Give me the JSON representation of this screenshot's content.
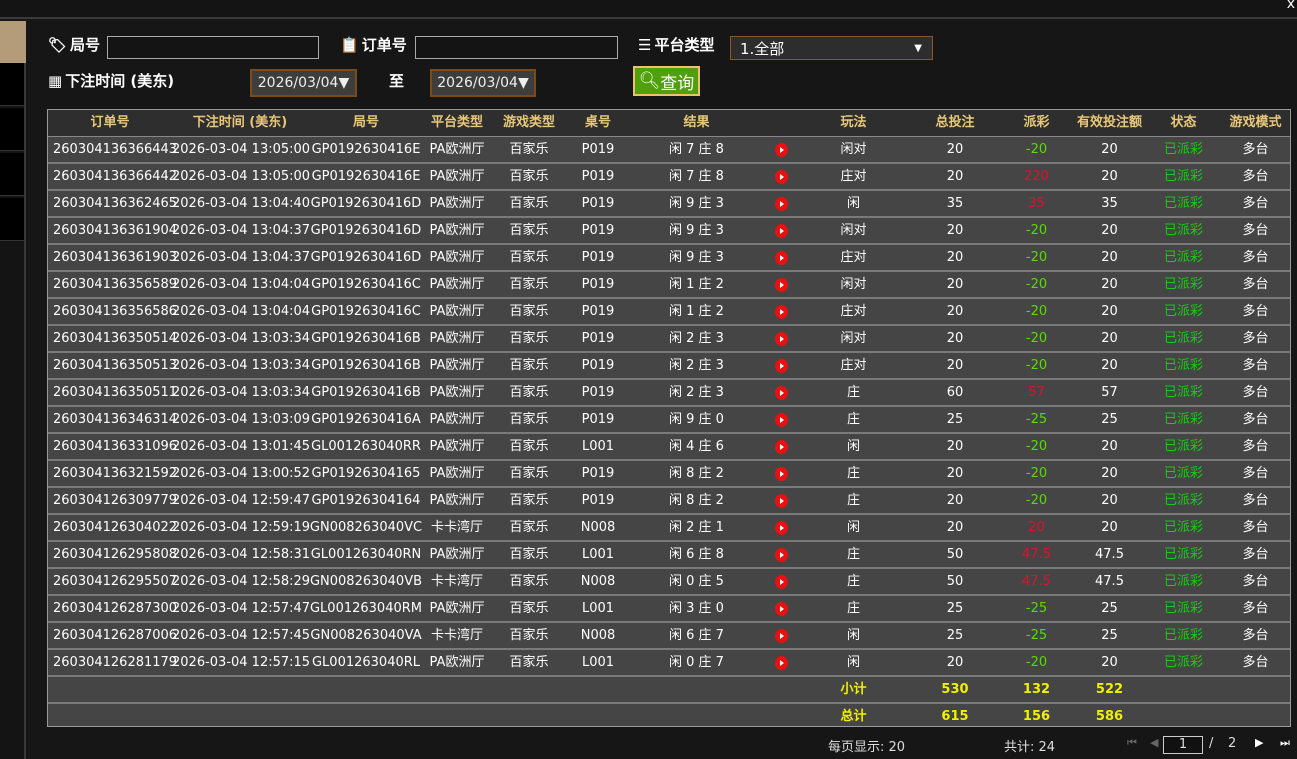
{
  "window": {
    "close_label": "x"
  },
  "filters": {
    "round_label": "局号",
    "round_value": "",
    "order_label": "订单号",
    "order_value": "",
    "platform_label": "平台类型",
    "platform_value": "1.全部",
    "time_label": "下注时间 (美东)",
    "date_from": "2026/03/04▼",
    "to_label": "至",
    "date_to": "2026/03/04▼",
    "query_label": "查询"
  },
  "columns": [
    "订单号",
    "下注时间 (美东)",
    "局号",
    "平台类型",
    "游戏类型",
    "桌号",
    "结果",
    "",
    "玩法",
    "总投注",
    "派彩",
    "有效投注额",
    "状态",
    "游戏模式"
  ],
  "colors": {
    "win": "#e01030",
    "loss": "#55dd00",
    "status": "#10d010",
    "header": "#e8c878",
    "sum": "#f0f000"
  },
  "rows": [
    [
      "260304136366443",
      "2026-03-04 13:05:00",
      "GP0192630416E",
      "PA欧洲厅",
      "百家乐",
      "P019",
      "闲 7 庄 8",
      "闲对",
      "20",
      "-20",
      "20",
      "已派彩",
      "多台"
    ],
    [
      "260304136366442",
      "2026-03-04 13:05:00",
      "GP0192630416E",
      "PA欧洲厅",
      "百家乐",
      "P019",
      "闲 7 庄 8",
      "庄对",
      "20",
      "220",
      "20",
      "已派彩",
      "多台"
    ],
    [
      "260304136362465",
      "2026-03-04 13:04:40",
      "GP0192630416D",
      "PA欧洲厅",
      "百家乐",
      "P019",
      "闲 9 庄 3",
      "闲",
      "35",
      "35",
      "35",
      "已派彩",
      "多台"
    ],
    [
      "260304136361904",
      "2026-03-04 13:04:37",
      "GP0192630416D",
      "PA欧洲厅",
      "百家乐",
      "P019",
      "闲 9 庄 3",
      "闲对",
      "20",
      "-20",
      "20",
      "已派彩",
      "多台"
    ],
    [
      "260304136361903",
      "2026-03-04 13:04:37",
      "GP0192630416D",
      "PA欧洲厅",
      "百家乐",
      "P019",
      "闲 9 庄 3",
      "庄对",
      "20",
      "-20",
      "20",
      "已派彩",
      "多台"
    ],
    [
      "260304136356589",
      "2026-03-04 13:04:04",
      "GP0192630416C",
      "PA欧洲厅",
      "百家乐",
      "P019",
      "闲 1 庄 2",
      "闲对",
      "20",
      "-20",
      "20",
      "已派彩",
      "多台"
    ],
    [
      "260304136356586",
      "2026-03-04 13:04:04",
      "GP0192630416C",
      "PA欧洲厅",
      "百家乐",
      "P019",
      "闲 1 庄 2",
      "庄对",
      "20",
      "-20",
      "20",
      "已派彩",
      "多台"
    ],
    [
      "260304136350514",
      "2026-03-04 13:03:34",
      "GP0192630416B",
      "PA欧洲厅",
      "百家乐",
      "P019",
      "闲 2 庄 3",
      "闲对",
      "20",
      "-20",
      "20",
      "已派彩",
      "多台"
    ],
    [
      "260304136350513",
      "2026-03-04 13:03:34",
      "GP0192630416B",
      "PA欧洲厅",
      "百家乐",
      "P019",
      "闲 2 庄 3",
      "庄对",
      "20",
      "-20",
      "20",
      "已派彩",
      "多台"
    ],
    [
      "260304136350511",
      "2026-03-04 13:03:34",
      "GP0192630416B",
      "PA欧洲厅",
      "百家乐",
      "P019",
      "闲 2 庄 3",
      "庄",
      "60",
      "57",
      "57",
      "已派彩",
      "多台"
    ],
    [
      "260304136346314",
      "2026-03-04 13:03:09",
      "GP0192630416A",
      "PA欧洲厅",
      "百家乐",
      "P019",
      "闲 9 庄 0",
      "庄",
      "25",
      "-25",
      "25",
      "已派彩",
      "多台"
    ],
    [
      "260304136331096",
      "2026-03-04 13:01:45",
      "GL001263040RR",
      "PA欧洲厅",
      "百家乐",
      "L001",
      "闲 4 庄 6",
      "闲",
      "20",
      "-20",
      "20",
      "已派彩",
      "多台"
    ],
    [
      "260304136321592",
      "2026-03-04 13:00:52",
      "GP01926304165",
      "PA欧洲厅",
      "百家乐",
      "P019",
      "闲 8 庄 2",
      "庄",
      "20",
      "-20",
      "20",
      "已派彩",
      "多台"
    ],
    [
      "260304126309779",
      "2026-03-04 12:59:47",
      "GP01926304164",
      "PA欧洲厅",
      "百家乐",
      "P019",
      "闲 8 庄 2",
      "庄",
      "20",
      "-20",
      "20",
      "已派彩",
      "多台"
    ],
    [
      "260304126304022",
      "2026-03-04 12:59:19",
      "GN008263040VC",
      "卡卡湾厅",
      "百家乐",
      "N008",
      "闲 2 庄 1",
      "闲",
      "20",
      "20",
      "20",
      "已派彩",
      "多台"
    ],
    [
      "260304126295808",
      "2026-03-04 12:58:31",
      "GL001263040RN",
      "PA欧洲厅",
      "百家乐",
      "L001",
      "闲 6 庄 8",
      "庄",
      "50",
      "47.5",
      "47.5",
      "已派彩",
      "多台"
    ],
    [
      "260304126295507",
      "2026-03-04 12:58:29",
      "GN008263040VB",
      "卡卡湾厅",
      "百家乐",
      "N008",
      "闲 0 庄 5",
      "庄",
      "50",
      "47.5",
      "47.5",
      "已派彩",
      "多台"
    ],
    [
      "260304126287300",
      "2026-03-04 12:57:47",
      "GL001263040RM",
      "PA欧洲厅",
      "百家乐",
      "L001",
      "闲 3 庄 0",
      "庄",
      "25",
      "-25",
      "25",
      "已派彩",
      "多台"
    ],
    [
      "260304126287006",
      "2026-03-04 12:57:45",
      "GN008263040VA",
      "卡卡湾厅",
      "百家乐",
      "N008",
      "闲 6 庄 7",
      "闲",
      "25",
      "-25",
      "25",
      "已派彩",
      "多台"
    ],
    [
      "260304126281179",
      "2026-03-04 12:57:15",
      "GL001263040RL",
      "PA欧洲厅",
      "百家乐",
      "L001",
      "闲 0 庄 7",
      "闲",
      "20",
      "-20",
      "20",
      "已派彩",
      "多台"
    ]
  ],
  "subtotal": {
    "label": "小计",
    "bet": "530",
    "payout": "132",
    "valid": "522"
  },
  "total": {
    "label": "总计",
    "bet": "615",
    "payout": "156",
    "valid": "586"
  },
  "pagination": {
    "per_page": "每页显示: 20",
    "count": "共计: 24",
    "page": "1",
    "sep": "/",
    "pages": "2"
  }
}
